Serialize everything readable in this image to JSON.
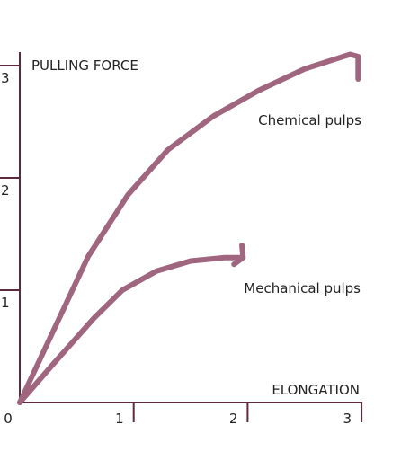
{
  "chart_data": {
    "type": "line",
    "title": "",
    "xlabel": "ELONGATION",
    "ylabel": "PULLING FORCE",
    "xlim": [
      0,
      3
    ],
    "ylim": [
      0,
      3
    ],
    "x_ticks": [
      0,
      1,
      2,
      3
    ],
    "y_ticks": [
      1,
      2,
      3
    ],
    "x_tick_labels": [
      "0",
      "1",
      "2",
      "3"
    ],
    "y_tick_labels": [
      "1",
      "2",
      "3"
    ],
    "grid": false,
    "legend": "none",
    "line_color": "#a0667f",
    "axis_color": "#5b2a3e",
    "series": [
      {
        "name": "Chemical pulps",
        "x": [
          0,
          0.3,
          0.6,
          0.95,
          1.3,
          1.7,
          2.1,
          2.5,
          2.9,
          2.97,
          2.97
        ],
        "y": [
          0,
          0.65,
          1.3,
          1.85,
          2.25,
          2.55,
          2.78,
          2.97,
          3.1,
          3.08,
          2.88
        ]
      },
      {
        "name": "Mechanical pulps",
        "x": [
          0,
          0.3,
          0.65,
          0.9,
          1.2,
          1.5,
          1.8,
          1.96,
          1.88,
          1.96,
          1.95
        ],
        "y": [
          0,
          0.35,
          0.75,
          1.0,
          1.17,
          1.26,
          1.29,
          1.29,
          1.23,
          1.29,
          1.4
        ]
      }
    ]
  }
}
